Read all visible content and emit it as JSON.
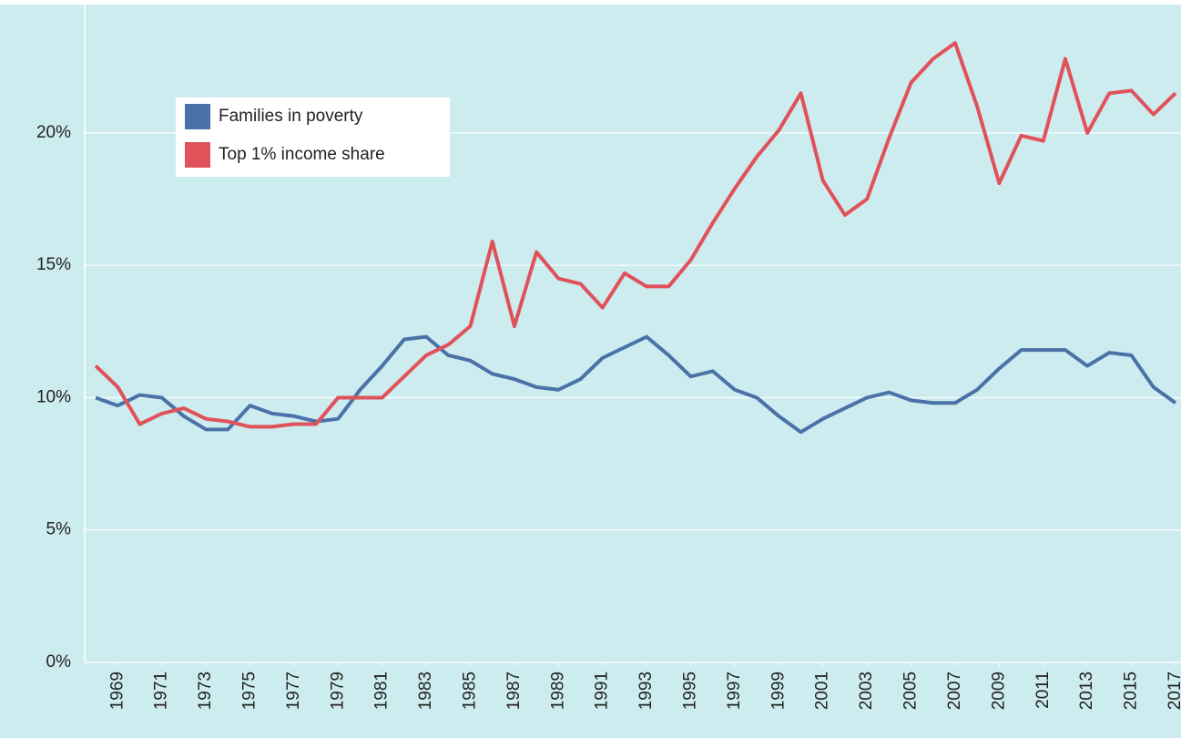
{
  "chart_data": {
    "type": "line",
    "x": [
      1968,
      1969,
      1970,
      1971,
      1972,
      1973,
      1974,
      1975,
      1976,
      1977,
      1978,
      1979,
      1980,
      1981,
      1982,
      1983,
      1984,
      1985,
      1986,
      1987,
      1988,
      1989,
      1990,
      1991,
      1992,
      1993,
      1994,
      1995,
      1996,
      1997,
      1998,
      1999,
      2000,
      2001,
      2002,
      2003,
      2004,
      2005,
      2006,
      2007,
      2008,
      2009,
      2010,
      2011,
      2012,
      2013,
      2014,
      2015,
      2016,
      2017
    ],
    "series": [
      {
        "name": "Families in poverty",
        "color": "#4a72a8",
        "values": [
          10.0,
          9.7,
          10.1,
          10.0,
          9.3,
          8.8,
          8.8,
          9.7,
          9.4,
          9.3,
          9.1,
          9.2,
          10.3,
          11.2,
          12.2,
          12.3,
          11.6,
          11.4,
          10.9,
          10.7,
          10.4,
          10.3,
          10.7,
          11.5,
          11.9,
          12.3,
          11.6,
          10.8,
          11.0,
          10.3,
          10.0,
          9.3,
          8.7,
          9.2,
          9.6,
          10.0,
          10.2,
          9.9,
          9.8,
          9.8,
          10.3,
          11.1,
          11.8,
          11.8,
          11.8,
          11.2,
          11.7,
          11.6,
          10.4,
          9.8
        ]
      },
      {
        "name": "Top 1% income share",
        "color": "#e0525a",
        "values": [
          11.2,
          10.4,
          9.0,
          9.4,
          9.6,
          9.2,
          9.1,
          8.9,
          8.9,
          9.0,
          9.0,
          10.0,
          10.0,
          10.0,
          10.8,
          11.6,
          12.0,
          12.7,
          15.9,
          12.7,
          15.5,
          14.5,
          14.3,
          13.4,
          14.7,
          14.2,
          14.2,
          15.2,
          16.6,
          17.9,
          19.1,
          20.1,
          21.5,
          18.2,
          16.9,
          17.5,
          19.8,
          21.9,
          22.8,
          23.4,
          21.0,
          18.1,
          19.9,
          19.7,
          22.8,
          20.0,
          21.5,
          21.6,
          20.7,
          21.5
        ]
      }
    ],
    "xlim": [
      1967.5,
      2017.25
    ],
    "xticks": [
      1969,
      1971,
      1973,
      1975,
      1977,
      1979,
      1981,
      1983,
      1985,
      1987,
      1989,
      1991,
      1993,
      1995,
      1997,
      1999,
      2001,
      2003,
      2005,
      2007,
      2009,
      2011,
      2013,
      2015,
      2017
    ],
    "ylim": [
      0,
      24.85
    ],
    "yticks": [
      {
        "value": 0,
        "label": "0%"
      },
      {
        "value": 5,
        "label": "5%"
      },
      {
        "value": 10,
        "label": "10%"
      },
      {
        "value": 15,
        "label": "15%"
      },
      {
        "value": 20,
        "label": "20%"
      }
    ],
    "grid": true
  }
}
